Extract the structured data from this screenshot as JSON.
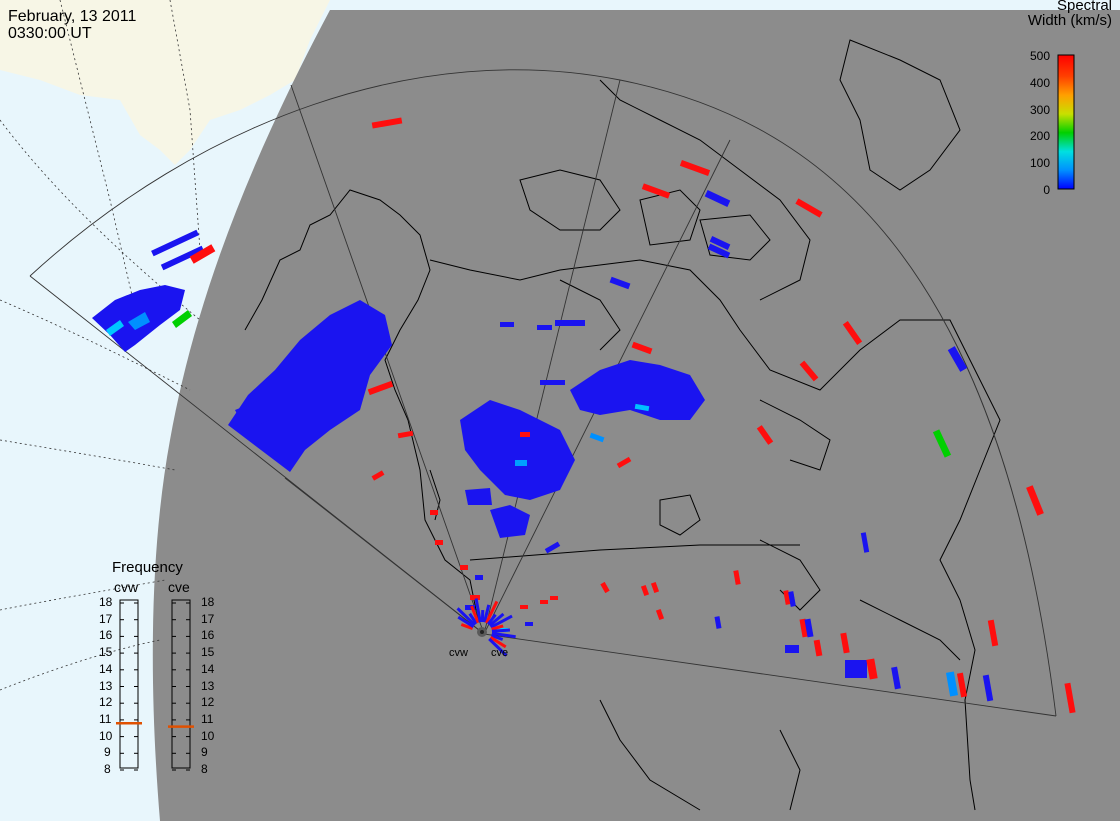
{
  "header": {
    "date": "February, 13 2011",
    "time": "0330:00 UT"
  },
  "colorbar": {
    "title_line1": "Spectral",
    "title_line2": "Width (km/s)",
    "ticks": [
      "500",
      "400",
      "300",
      "200",
      "100",
      "0"
    ],
    "colors": [
      "#0000ff",
      "#0090ff",
      "#00e0e0",
      "#00d000",
      "#c8e000",
      "#ffa000",
      "#ff4000",
      "#ff0000"
    ]
  },
  "frequency": {
    "title": "Frequency",
    "radar_a": "cvw",
    "radar_b": "cve",
    "ticks": [
      "18",
      "17",
      "16",
      "15",
      "14",
      "13",
      "12",
      "11",
      "10",
      "9",
      "8"
    ],
    "radar_a_mhz": 10.8,
    "radar_b_mhz": 10.6,
    "marker_color": "#e05000"
  },
  "sites": {
    "west": "cvw",
    "east": "cve"
  },
  "map": {
    "land_color": "#f7f6e6",
    "ocean_color": "#e8f6fc",
    "night_color": "#8c8c8c",
    "scatter_low": "#1a14f0",
    "scatter_high": "#ff0e0e"
  }
}
